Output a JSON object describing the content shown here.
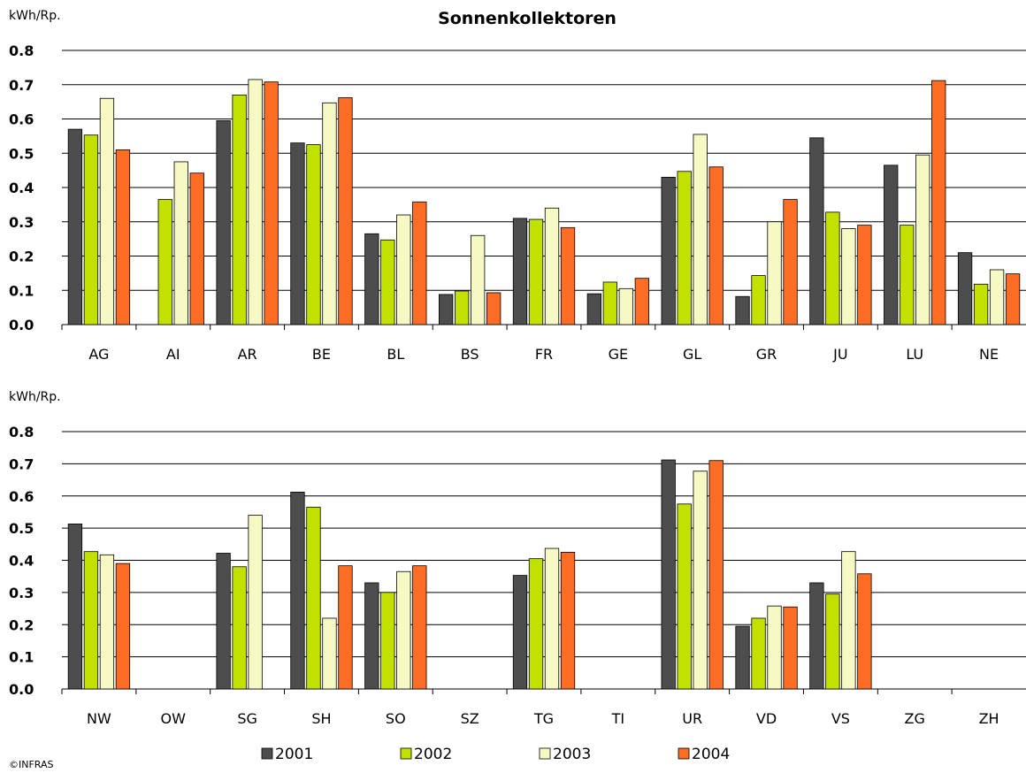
{
  "title": "Sonnenkollektoren",
  "credit": "©INFRAS",
  "colors": {
    "2001": "#4d4d4d",
    "2002": "#c3e100",
    "2003": "#f6f9c3",
    "2004": "#ff6c24"
  },
  "legend": [
    "2001",
    "2002",
    "2003",
    "2004"
  ],
  "chart_data": [
    {
      "type": "bar",
      "ylabel": "kWh/Rp.",
      "ylim": [
        0,
        0.8
      ],
      "yticks": [
        "0.0",
        "0.1",
        "0.2",
        "0.3",
        "0.4",
        "0.5",
        "0.6",
        "0.7",
        "0.8"
      ],
      "grid": true,
      "categories": [
        "AG",
        "AI",
        "AR",
        "BE",
        "BL",
        "BS",
        "FR",
        "GE",
        "GL",
        "GR",
        "JU",
        "LU",
        "NE"
      ],
      "series": [
        {
          "name": "2001",
          "values": [
            0.57,
            null,
            0.595,
            0.53,
            0.265,
            0.088,
            0.31,
            0.09,
            0.43,
            0.082,
            0.545,
            0.465,
            0.21
          ]
        },
        {
          "name": "2002",
          "values": [
            0.553,
            0.365,
            0.67,
            0.525,
            0.247,
            0.098,
            0.307,
            0.124,
            0.447,
            0.143,
            0.328,
            0.29,
            0.118
          ]
        },
        {
          "name": "2003",
          "values": [
            0.66,
            0.475,
            0.715,
            0.647,
            0.32,
            0.26,
            0.34,
            0.105,
            0.555,
            0.3,
            0.28,
            0.495,
            0.16
          ]
        },
        {
          "name": "2004",
          "values": [
            0.51,
            0.442,
            0.708,
            0.662,
            0.358,
            0.093,
            0.283,
            0.135,
            0.46,
            0.365,
            0.29,
            0.712,
            0.148
          ]
        }
      ]
    },
    {
      "type": "bar",
      "ylabel": "kWh/Rp.",
      "ylim": [
        0,
        0.8
      ],
      "yticks": [
        "0.0",
        "0.1",
        "0.2",
        "0.3",
        "0.4",
        "0.5",
        "0.6",
        "0.7",
        "0.8"
      ],
      "grid": true,
      "categories": [
        "NW",
        "OW",
        "SG",
        "SH",
        "SO",
        "SZ",
        "TG",
        "TI",
        "UR",
        "VD",
        "VS",
        "ZG",
        "ZH"
      ],
      "series": [
        {
          "name": "2001",
          "values": [
            0.513,
            null,
            0.422,
            0.612,
            0.33,
            null,
            0.353,
            null,
            0.712,
            0.195,
            0.33,
            null,
            null
          ]
        },
        {
          "name": "2002",
          "values": [
            0.427,
            null,
            0.38,
            0.565,
            0.3,
            null,
            0.405,
            null,
            0.575,
            0.22,
            0.295,
            null,
            null
          ]
        },
        {
          "name": "2003",
          "values": [
            0.417,
            null,
            0.54,
            0.22,
            0.365,
            null,
            0.437,
            null,
            0.677,
            0.258,
            0.427,
            null,
            null
          ]
        },
        {
          "name": "2004",
          "values": [
            0.39,
            null,
            null,
            0.383,
            0.383,
            null,
            0.425,
            null,
            0.71,
            0.255,
            0.358,
            null,
            null
          ]
        }
      ]
    }
  ]
}
